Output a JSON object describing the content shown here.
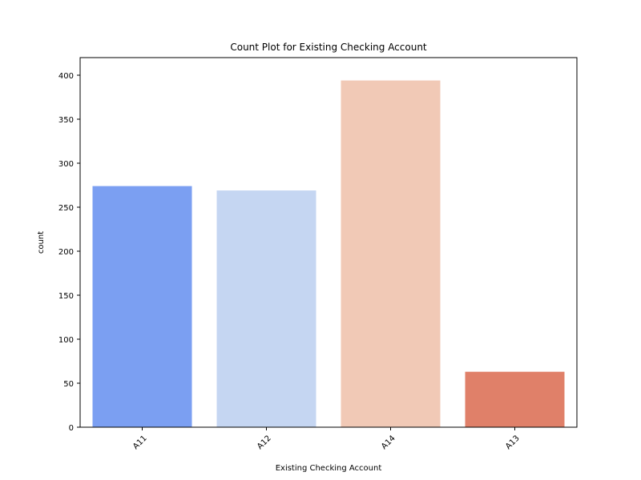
{
  "chart_data": {
    "type": "bar",
    "title": "Count Plot for Existing Checking Account",
    "xlabel": "Existing Checking Account",
    "ylabel": "count",
    "categories": [
      "A11",
      "A12",
      "A14",
      "A13"
    ],
    "values": [
      274,
      269,
      394,
      63
    ],
    "colors": [
      "#7b9ff2",
      "#c5d6f2",
      "#f1c9b6",
      "#e08069"
    ],
    "ylim": [
      0,
      420
    ],
    "yticks": [
      0,
      50,
      100,
      150,
      200,
      250,
      300,
      350,
      400
    ],
    "grid": false,
    "legend": "none"
  }
}
